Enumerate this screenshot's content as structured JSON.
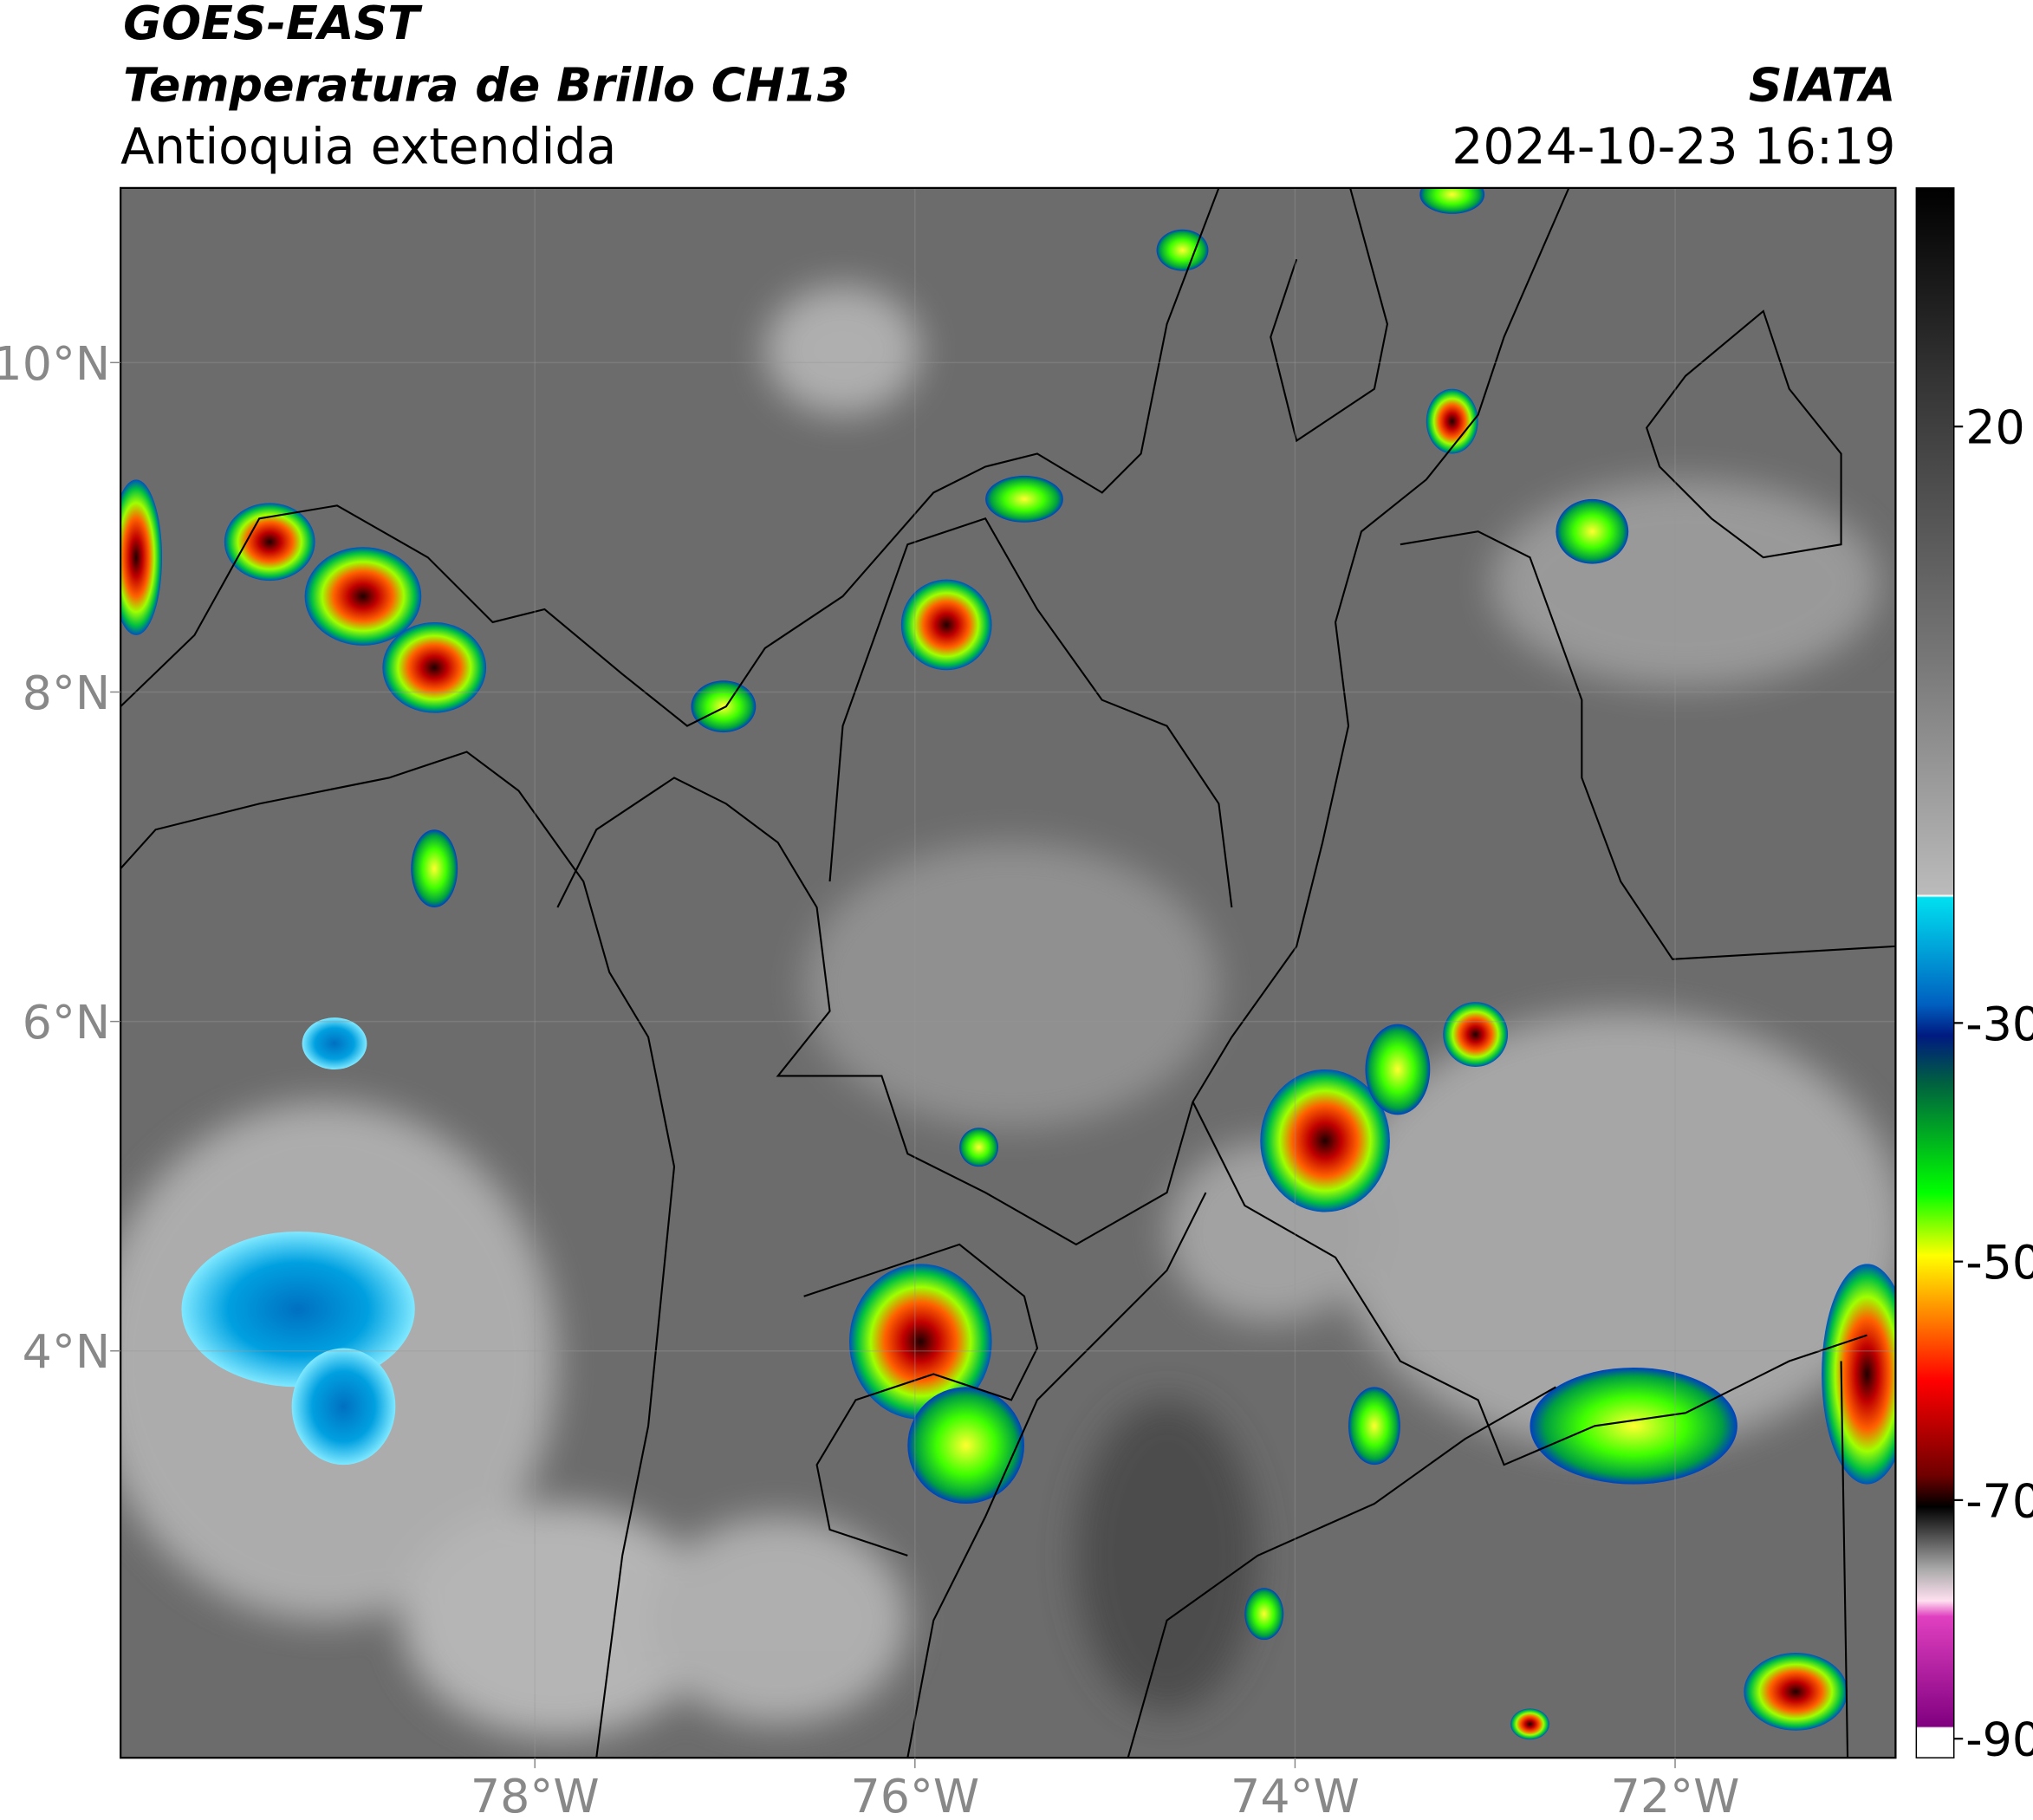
{
  "header": {
    "title_line1": "GOES-EAST",
    "title_line2": "Temperatura de Brillo CH13",
    "subtitle": "Antioquia extendida",
    "agency": "SIATA",
    "timestamp": "2024-10-23 16:19"
  },
  "map": {
    "lon_range": [
      -80.18,
      -70.84
    ],
    "lat_range": [
      1.53,
      11.06
    ],
    "lat_ticks": [
      {
        "value": 10,
        "label": "10°N"
      },
      {
        "value": 8,
        "label": "8°N"
      },
      {
        "value": 6,
        "label": "6°N"
      },
      {
        "value": 4,
        "label": "4°N"
      }
    ],
    "lon_ticks": [
      {
        "value": -78,
        "label": "78°W"
      },
      {
        "value": -76,
        "label": "76°W"
      },
      {
        "value": -74,
        "label": "74°W"
      },
      {
        "value": -72,
        "label": "72°W"
      }
    ]
  },
  "colorbar": {
    "range": [
      -91.6,
      40
    ],
    "ticks": [
      20,
      -30,
      -50,
      -70,
      -90
    ]
  }
}
